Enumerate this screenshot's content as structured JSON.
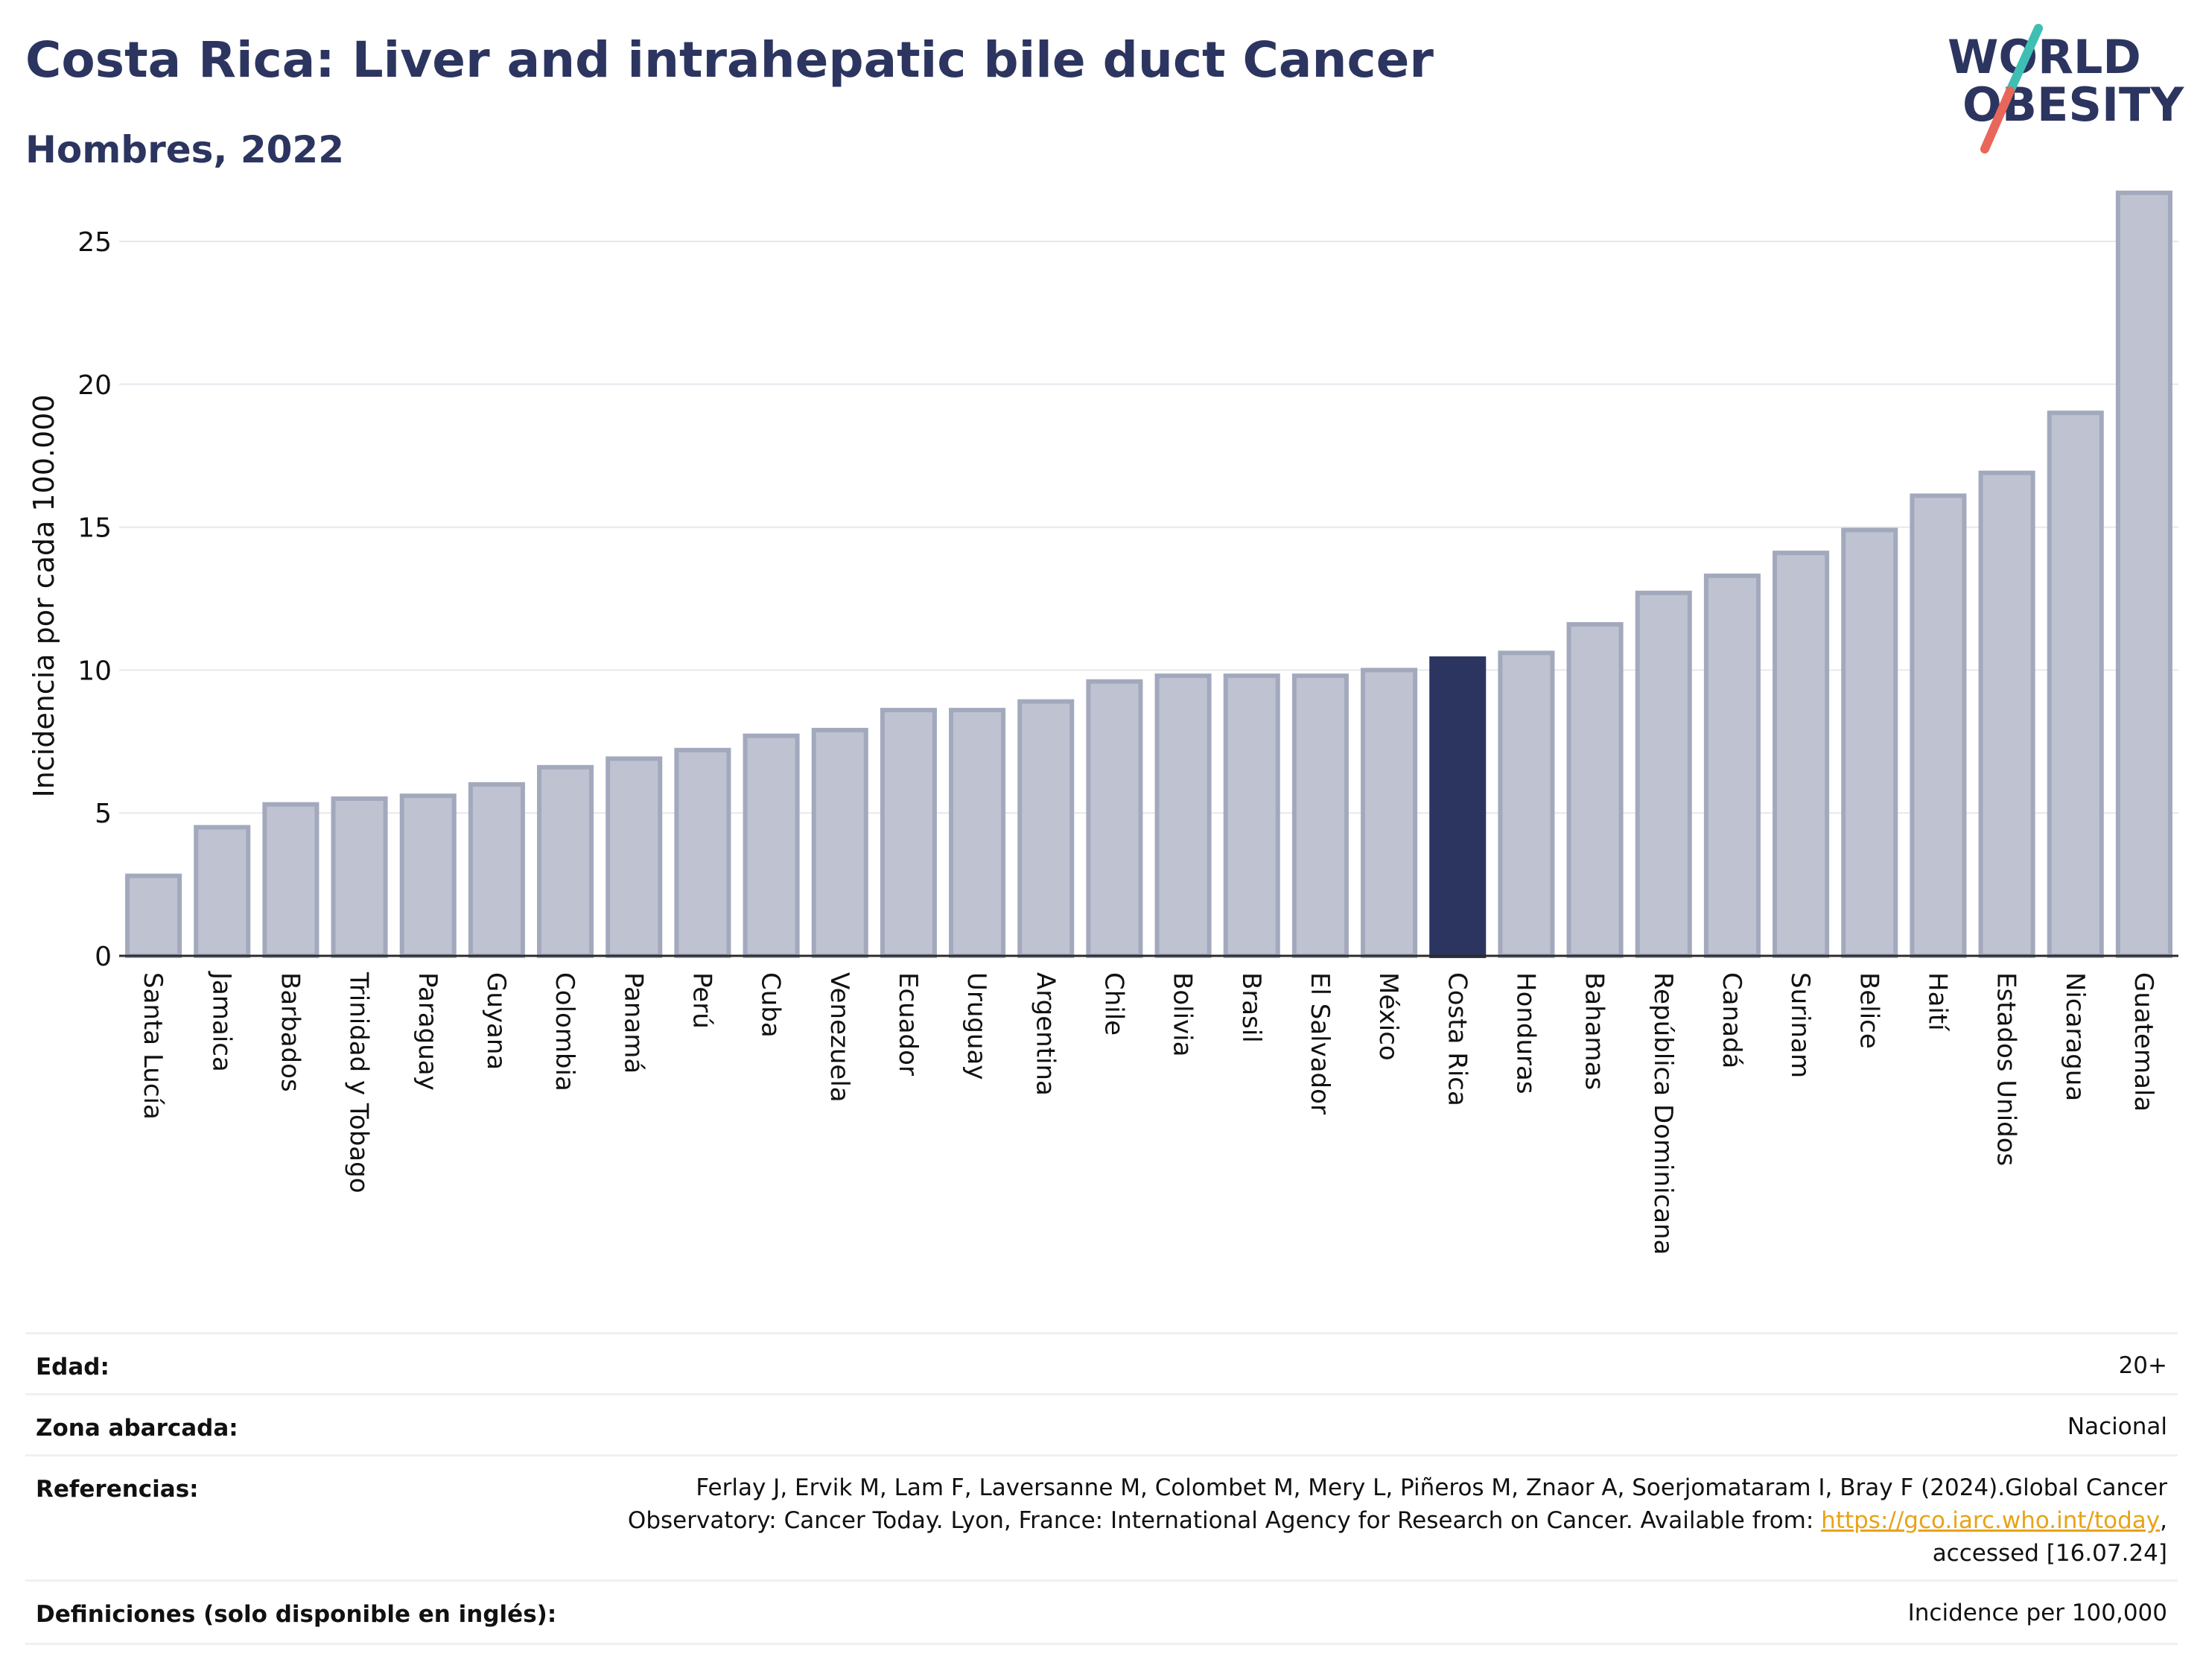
{
  "header": {
    "title": "Costa Rica: Liver and intrahepatic bile duct Cancer",
    "subtitle": "Hombres, 2022",
    "logo_line1": "WORLD",
    "logo_line2": "OBESITY"
  },
  "chart_data": {
    "type": "bar",
    "ylabel": "Incidencia por cada 100.000",
    "ylim": [
      0,
      27
    ],
    "yticks": [
      0,
      5,
      10,
      15,
      20,
      25
    ],
    "grid": true,
    "highlight": "Costa Rica",
    "categories": [
      "Santa Lucía",
      "Jamaica",
      "Barbados",
      "Trinidad y Tobago",
      "Paraguay",
      "Guyana",
      "Colombia",
      "Panamá",
      "Perú",
      "Cuba",
      "Venezuela",
      "Ecuador",
      "Uruguay",
      "Argentina",
      "Chile",
      "Bolivia",
      "Brasil",
      "El Salvador",
      "México",
      "Costa Rica",
      "Honduras",
      "Bahamas",
      "República Dominicana",
      "Canadá",
      "Surinam",
      "Belice",
      "Haití",
      "Estados Unidos",
      "Nicaragua",
      "Guatemala"
    ],
    "values": [
      2.8,
      4.5,
      5.3,
      5.5,
      5.6,
      6.0,
      6.6,
      6.9,
      7.2,
      7.7,
      7.9,
      8.6,
      8.6,
      8.9,
      9.6,
      9.8,
      9.8,
      9.8,
      10.0,
      10.4,
      10.6,
      11.6,
      12.7,
      13.3,
      14.1,
      14.9,
      16.1,
      16.9,
      19.0,
      26.7
    ],
    "colors": {
      "bar": "#bfc3d1",
      "bar_edge": "#a3a9bd",
      "highlight": "#2c3560"
    }
  },
  "meta": {
    "rows": [
      {
        "label": "Edad:",
        "value": "20+"
      },
      {
        "label": "Zona abarcada:",
        "value": "Nacional"
      },
      {
        "label": "Referencias:",
        "value_line1": "Ferlay J, Ervik M, Lam F, Laversanne M, Colombet M, Mery L, Piñeros M, Znaor A, Soerjomataram I, Bray F (2024).Global Cancer",
        "value_line2_pre": "Observatory: Cancer Today. Lyon, France: International Agency for Research on Cancer. Available from: ",
        "value_line2_link": "https://gco.iarc.who.int/today",
        "value_line2_post": ",",
        "value_line3": "accessed [16.07.24]"
      },
      {
        "label": "Definiciones (solo disponible en inglés):",
        "value": "Incidence per 100,000"
      }
    ]
  }
}
